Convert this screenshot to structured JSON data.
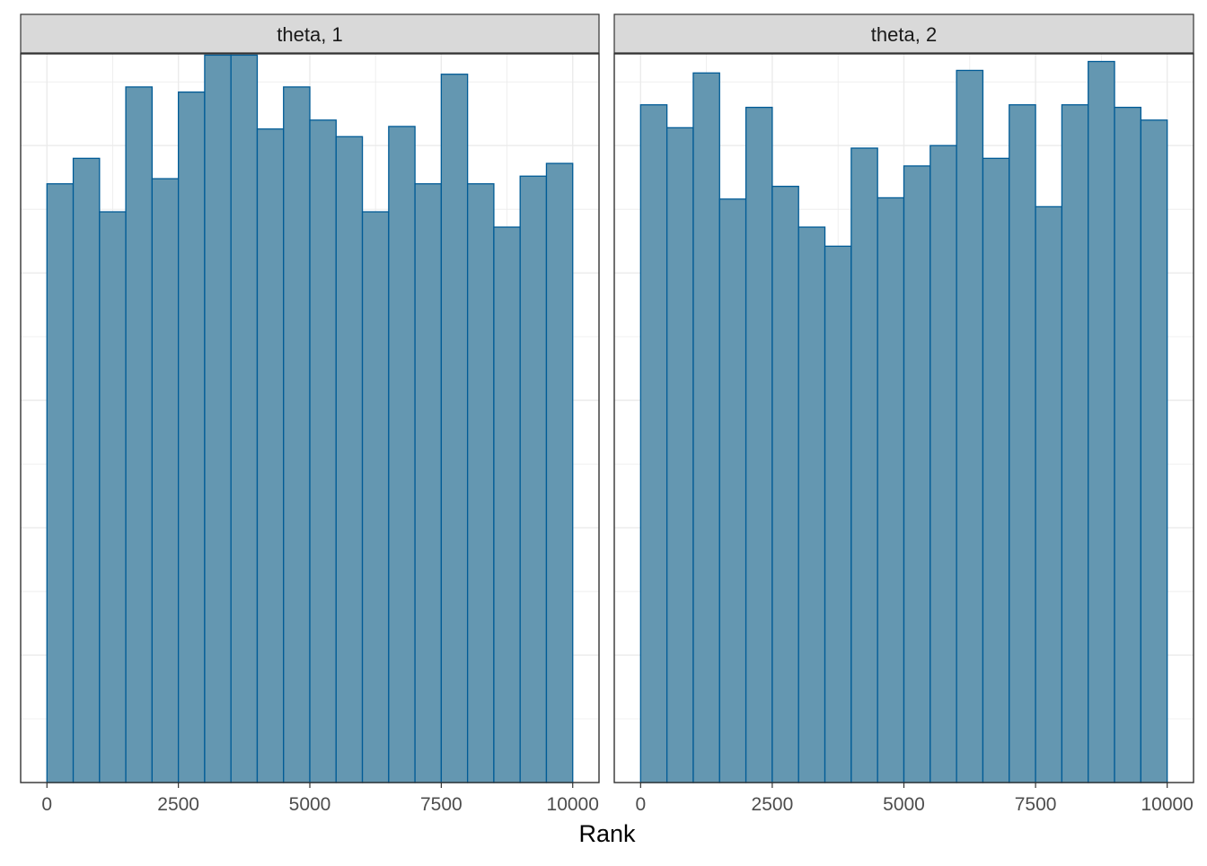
{
  "chart_data": {
    "type": "bar",
    "xlabel": "Rank",
    "ylabel": "",
    "x_ticks": [
      0,
      2500,
      5000,
      7500,
      10000
    ],
    "xlim": [
      -500,
      10500
    ],
    "ylim": [
      0,
      572
    ],
    "bin_width": 500,
    "bin_starts": [
      0,
      500,
      1000,
      1500,
      2000,
      2500,
      3000,
      3500,
      4000,
      4500,
      5000,
      5500,
      6000,
      6500,
      7000,
      7500,
      8000,
      8500,
      9000,
      9500
    ],
    "grid": true,
    "y_tick_labels_shown": false,
    "colors": {
      "fill": "#6497b1",
      "stroke": "#005b96",
      "strip": "#d9d9d9",
      "grid": "#ebebeb",
      "axis_text": "#4d4d4d",
      "title_text": "#1a1a1a",
      "border": "#333333"
    },
    "panels": [
      {
        "strip_label": "theta, 1",
        "values": [
          470,
          490,
          448,
          546,
          474,
          542,
          571,
          571,
          513,
          546,
          520,
          507,
          448,
          515,
          470,
          556,
          470,
          436,
          476,
          486
        ]
      },
      {
        "strip_label": "theta, 2",
        "values": [
          532,
          514,
          557,
          458,
          530,
          468,
          436,
          421,
          498,
          459,
          484,
          500,
          559,
          490,
          532,
          452,
          532,
          566,
          530,
          520
        ]
      }
    ]
  }
}
